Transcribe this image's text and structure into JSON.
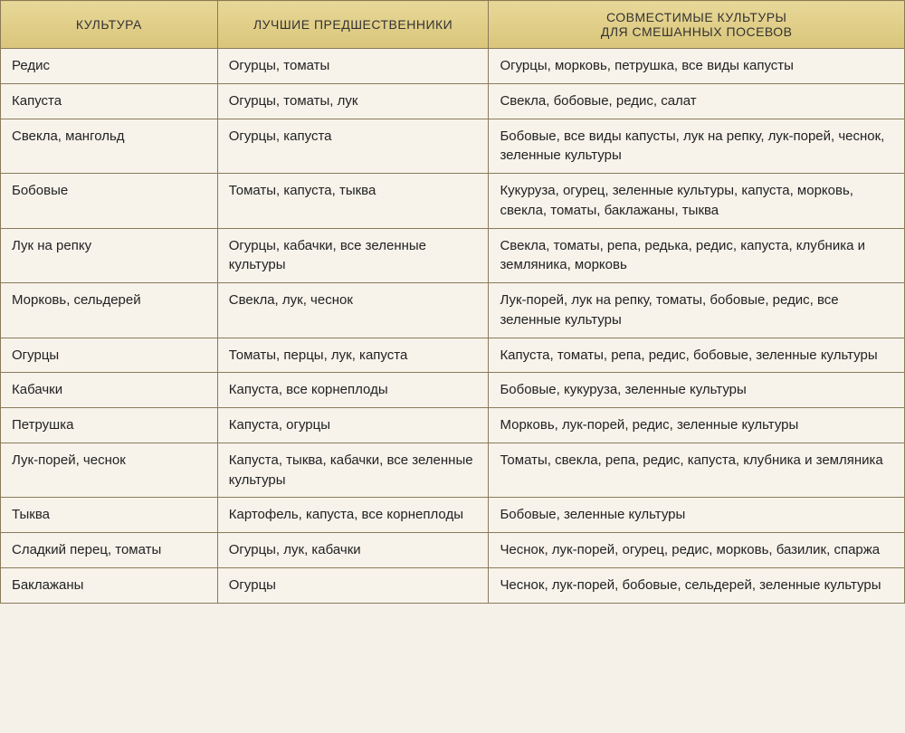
{
  "header": {
    "col1": "КУЛЬТУРА",
    "col2": "ЛУЧШИЕ ПРЕДШЕСТВЕННИКИ",
    "col3_line1": "СОВМЕСТИМЫЕ КУЛЬТУРЫ",
    "col3_line2": "ДЛЯ СМЕШАННЫХ ПОСЕВОВ"
  },
  "rows": [
    {
      "culture": "Редис",
      "predecessors": "Огурцы, томаты",
      "compatible": "Огурцы, морковь, петрушка, все виды капусты"
    },
    {
      "culture": "Капуста",
      "predecessors": "Огурцы, томаты, лук",
      "compatible": "Свекла, бобовые, редис, салат"
    },
    {
      "culture": "Свекла, мангольд",
      "predecessors": "Огурцы, капуста",
      "compatible": "Бобовые, все виды капусты, лук на репку, лук-порей, чеснок, зеленные культуры"
    },
    {
      "culture": "Бобовые",
      "predecessors": "Томаты, капуста, тыква",
      "compatible": "Кукуруза, огурец, зеленные культуры, капуста, морковь, свекла, томаты, баклажаны, тыква"
    },
    {
      "culture": "Лук на репку",
      "predecessors": "Огурцы, кабачки, все зеленные культуры",
      "compatible": "Свекла, томаты, репа, редька, редис, капуста, клубника и земляника, морковь"
    },
    {
      "culture": "Морковь, сельдерей",
      "predecessors": "Свекла, лук, чеснок",
      "compatible": "Лук-порей, лук на репку, томаты, бобовые, редис, все зеленные культуры"
    },
    {
      "culture": "Огурцы",
      "predecessors": "Томаты, перцы, лук, капуста",
      "compatible": "Капуста, томаты, репа, редис, бобовые, зеленные культуры"
    },
    {
      "culture": "Кабачки",
      "predecessors": "Капуста, все корнеплоды",
      "compatible": "Бобовые, кукуруза, зеленные культуры"
    },
    {
      "culture": "Петрушка",
      "predecessors": "Капуста, огурцы",
      "compatible": "Морковь, лук-порей, редис, зеленные культуры"
    },
    {
      "culture": "Лук-порей, чеснок",
      "predecessors": "Капуста, тыква, кабачки, все зеленные культуры",
      "compatible": "Томаты, свекла, репа, редис, капуста, клубника и земляника"
    },
    {
      "culture": "Тыква",
      "predecessors": "Картофель, капуста, все корнеплоды",
      "compatible": "Бобовые, зеленные культуры"
    },
    {
      "culture": "Сладкий перец, томаты",
      "predecessors": "Огурцы, лук, кабачки",
      "compatible": "Чеснок, лук-порей, огурец, редис, морковь, базилик, спаржа"
    },
    {
      "culture": "Баклажаны",
      "predecessors": "Огурцы",
      "compatible": "Чеснок, лук-порей, бобовые, сельдерей, зеленные культуры"
    }
  ],
  "colors": {
    "header_bg_top": "#e8d898",
    "header_bg_bottom": "#d9c57a",
    "body_bg": "#f7f3eb",
    "page_bg": "#f5f0e8",
    "border": "#8a7a5a",
    "text": "#222"
  },
  "typography": {
    "header_fontsize": 14,
    "body_fontsize": 15,
    "font_family": "Arial"
  },
  "column_widths_pct": [
    24,
    30,
    46
  ]
}
